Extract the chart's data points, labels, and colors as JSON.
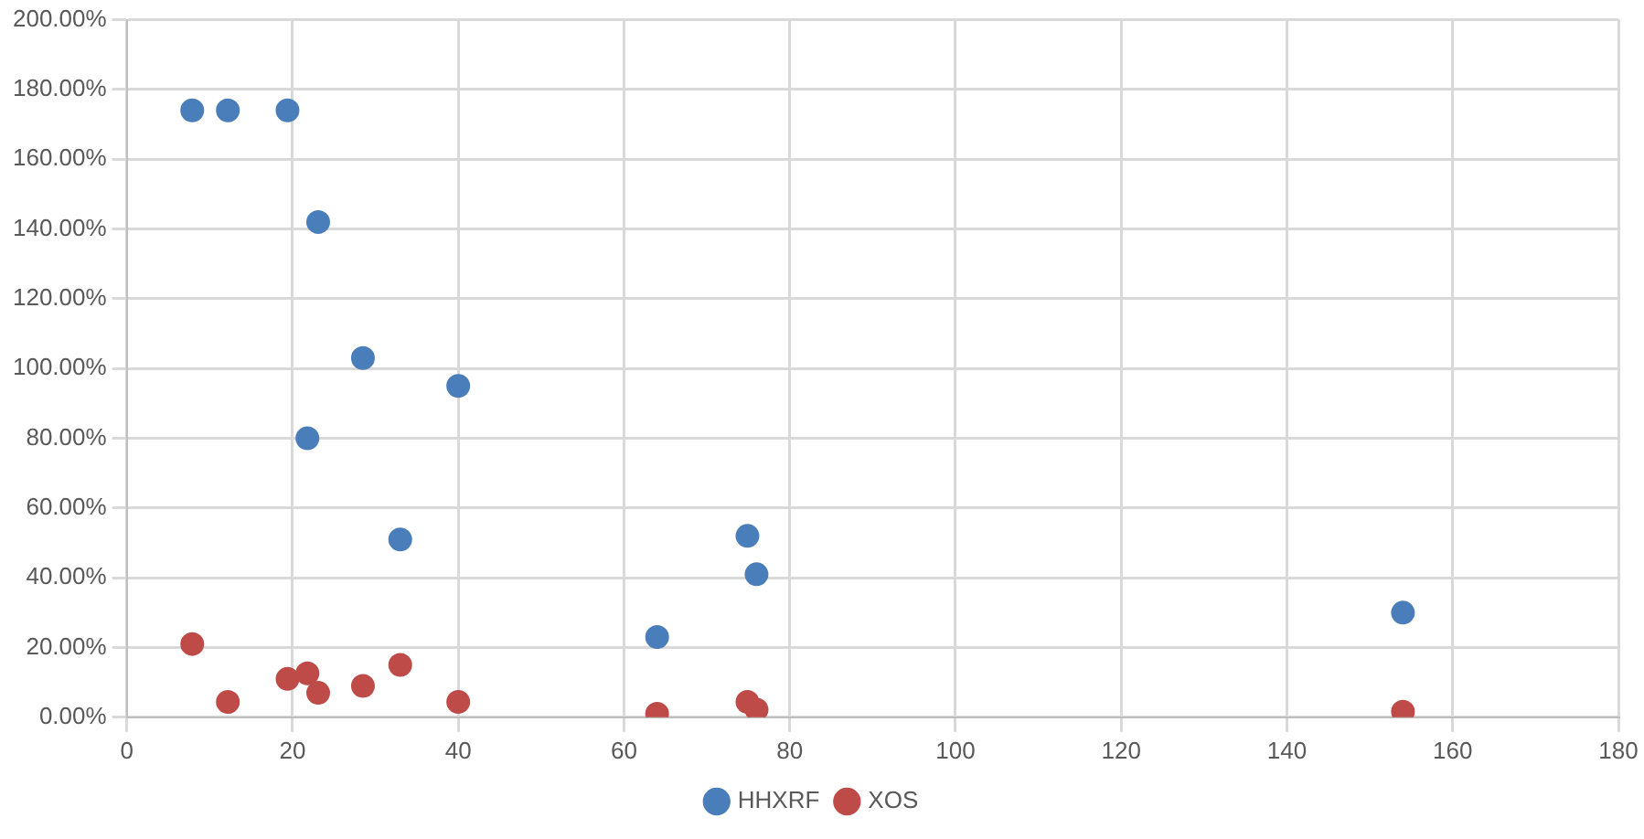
{
  "chart_data": {
    "type": "scatter",
    "marker": "circle",
    "grid": true,
    "legend": "bottom",
    "xlim": [
      0,
      180
    ],
    "xticks": [
      0,
      20,
      40,
      60,
      80,
      100,
      120,
      140,
      160,
      180
    ],
    "ylim": [
      0,
      200
    ],
    "yticks": [
      {
        "value": 0,
        "label": "0.00%"
      },
      {
        "value": 20,
        "label": "20.00%"
      },
      {
        "value": 40,
        "label": "40.00%"
      },
      {
        "value": 60,
        "label": "60.00%"
      },
      {
        "value": 80,
        "label": "80.00%"
      },
      {
        "value": 100,
        "label": "100.00%"
      },
      {
        "value": 120,
        "label": "120.00%"
      },
      {
        "value": 140,
        "label": "140.00%"
      },
      {
        "value": 160,
        "label": "160.00%"
      },
      {
        "value": 180,
        "label": "180.00%"
      },
      {
        "value": 200,
        "label": "200.00%"
      }
    ],
    "series": [
      {
        "name": "HHXRF",
        "color": "#4a7ebb",
        "x": [
          7.9,
          12.2,
          19.4,
          23.1,
          28.5,
          40,
          21.8,
          33,
          64,
          74.9,
          76,
          154
        ],
        "values": [
          174,
          174,
          174,
          142,
          103,
          95,
          80,
          51,
          23,
          52,
          41,
          30
        ]
      },
      {
        "name": "XOS",
        "color": "#be4b48",
        "x": [
          7.9,
          12.2,
          19.4,
          21.8,
          23.1,
          28.5,
          33,
          40,
          64,
          74.9,
          76,
          154
        ],
        "values": [
          21,
          4.4,
          11,
          12.6,
          7,
          9,
          15,
          4.4,
          1,
          4.4,
          2.2,
          1.6
        ]
      }
    ]
  }
}
